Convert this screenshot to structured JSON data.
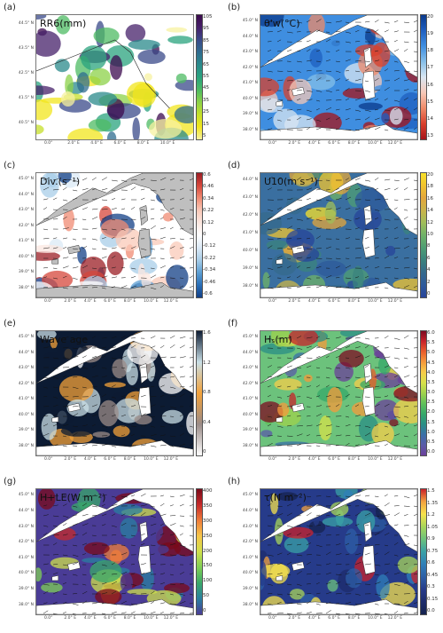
{
  "panels": [
    {
      "label": "(a)",
      "title": "RR6(mm)",
      "colorbar": [
        "105",
        "95",
        "85",
        "75",
        "65",
        "55",
        "45",
        "35",
        "25",
        "15",
        "5"
      ],
      "lat": [
        "44.5° N",
        "43.5° N",
        "42.5° N",
        "41.5° N",
        "40.5° N"
      ],
      "lon": [
        "0.0°",
        "2.0° E",
        "4.0° E",
        "6.0° E",
        "8.0° E",
        "10.0° E"
      ]
    },
    {
      "label": "(b)",
      "title": "θ'w(°C)",
      "colorbar": [
        "20",
        "19",
        "18",
        "17",
        "16",
        "15",
        "14",
        "13"
      ],
      "lat": [
        "45.0° N",
        "44.0° N",
        "43.0° N",
        "42.0° N",
        "41.0° N",
        "40.0° N",
        "39.0° N",
        "38.0° N"
      ],
      "lon": [
        "0.0°",
        "2.0° E",
        "4.0° E",
        "6.0° E",
        "8.0° E",
        "10.0° E",
        "12.0° E"
      ]
    },
    {
      "label": "(c)",
      "title": "Div.(s⁻¹)",
      "colorbar": [
        "0.6",
        "0.46",
        "0.34",
        "0.22",
        "0.12",
        "0",
        "-0.12",
        "-0.22",
        "-0.34",
        "-0.46",
        "-0.6"
      ],
      "lat": [
        "45.0° N",
        "44.0° N",
        "43.0° N",
        "42.0° N",
        "41.0° N",
        "40.0° N",
        "39.0° N",
        "38.0° N"
      ],
      "lon": [
        "0.0°",
        "2.0° E",
        "4.0° E",
        "6.0° E",
        "8.0° E",
        "10.0° E",
        "12.0° E"
      ]
    },
    {
      "label": "(d)",
      "title": "U10(m s⁻¹)",
      "colorbar": [
        "20",
        "18",
        "16",
        "14",
        "12",
        "10",
        "8",
        "6",
        "4",
        "2",
        "0"
      ],
      "lat": [
        "44.0° N",
        "43.0° N",
        "42.0° N",
        "41.0° N",
        "40.0° N",
        "39.0° N",
        "38.0° N"
      ],
      "lon": [
        "0.0°",
        "2.0° E",
        "4.0° E",
        "6.0° E",
        "8.0° E",
        "10.0° E",
        "12.0° E"
      ]
    },
    {
      "label": "(e)",
      "title": "Wave age",
      "colorbar": [
        "1.6",
        "1.2",
        "0.8",
        "0.4",
        "0"
      ],
      "lat": [
        "45.0° N",
        "44.0° N",
        "43.0° N",
        "42.0° N",
        "41.0° N",
        "40.0° N",
        "39.0° N",
        "38.0° N"
      ],
      "lon": [
        "0.0°",
        "2.0° E",
        "4.0° E",
        "6.0° E",
        "8.0° E",
        "10.0° E",
        "12.0° E"
      ]
    },
    {
      "label": "(f)",
      "title": "Hₛ(m)",
      "colorbar": [
        "6.0",
        "5.5",
        "5.0",
        "4.5",
        "4.0",
        "3.5",
        "3.0",
        "2.5",
        "2.0",
        "1.5",
        "1.0",
        "0.5",
        "0.0"
      ],
      "lat": [
        "45.0° N",
        "44.0° N",
        "43.0° N",
        "42.0° N",
        "41.0° N",
        "40.0° N",
        "39.0° N",
        "38.0° N"
      ],
      "lon": [
        "0.0°",
        "2.0° E",
        "4.0° E",
        "6.0° E",
        "8.0° E",
        "10.0° E",
        "12.0° E"
      ]
    },
    {
      "label": "(g)",
      "title": "H+LE(W m⁻²)",
      "colorbar": [
        "400",
        "350",
        "300",
        "250",
        "200",
        "150",
        "100",
        "50",
        "0"
      ],
      "lat": [
        "45.0° N",
        "44.0° N",
        "43.0° N",
        "42.0° N",
        "41.0° N",
        "40.0° N",
        "39.0° N",
        "38.0° N"
      ],
      "lon": [
        "0.0°",
        "2.0° E",
        "4.0° E",
        "6.0° E",
        "8.0° E",
        "10.0° E",
        "12.0° E"
      ]
    },
    {
      "label": "(h)",
      "title": "τ(N m⁻²)",
      "colorbar": [
        "1.5",
        "1.35",
        "1.2",
        "1.05",
        "0.9",
        "0.75",
        "0.6",
        "0.45",
        "0.3",
        "0.15",
        "0.0"
      ],
      "lat": [
        "45.0° N",
        "44.0° N",
        "43.0° N",
        "42.0° N",
        "41.0° N",
        "40.0° N",
        "39.0° N",
        "38.0° N"
      ],
      "lon": [
        "0.0°",
        "2.0° E",
        "4.0° E",
        "6.0° E",
        "8.0° E",
        "10.0° E",
        "12.0° E"
      ]
    }
  ],
  "colormaps": {
    "rr": [
      "#3b0a4d",
      "#46206a",
      "#3a4a8a",
      "#2f6c8f",
      "#2a8a8b",
      "#2aa37e",
      "#4dbb63",
      "#8cd148",
      "#c5df2a",
      "#f1e51d",
      "#f7f1a0"
    ],
    "theta": [
      "#0b3a8c",
      "#1f5fc0",
      "#3f8ee0",
      "#86bfe8",
      "#d9e6f2",
      "#f6c8b8",
      "#ef8a68",
      "#d8402c",
      "#a5141b"
    ],
    "div": [
      "#9b1d24",
      "#d6473b",
      "#f08b73",
      "#f9c9b8",
      "#fbe7e0",
      "#ffffff",
      "#dbe9f6",
      "#a8cde8",
      "#5d9fd3",
      "#2a6fb8",
      "#123f86"
    ],
    "u10": [
      "#f7e02a",
      "#f1c430",
      "#e3a63c",
      "#c9b44a",
      "#9fbd5a",
      "#6fb268",
      "#4f9e74",
      "#3b837d",
      "#356a8c",
      "#2e5a9b",
      "#27449a"
    ],
    "wave": [
      "#0c1b33",
      "#c9dfe6",
      "#f3a23a",
      "#9b8c88",
      "#ffffff"
    ],
    "hs": [
      "#7d0b22",
      "#c8232a",
      "#e95e2c",
      "#f59a3b",
      "#f6cd4a",
      "#d6e14a",
      "#9fd24c",
      "#5fc05a",
      "#36a86a",
      "#2a8e86",
      "#3a6fa8",
      "#5a5aa8",
      "#6b3f9a"
    ],
    "flux": [
      "#7a0a19",
      "#c62a2a",
      "#ef7d3a",
      "#f6c64a",
      "#cfe04b",
      "#7fcf55",
      "#3aa86a",
      "#2a7fa0",
      "#4a3c96"
    ],
    "tau": [
      "#c9212a",
      "#f2a140",
      "#f6e24c",
      "#a8d65a",
      "#6cc27c",
      "#3aa1a6",
      "#2f7fb8",
      "#2d5fa6",
      "#263b8a",
      "#1d2c6b",
      "#15234f"
    ]
  }
}
